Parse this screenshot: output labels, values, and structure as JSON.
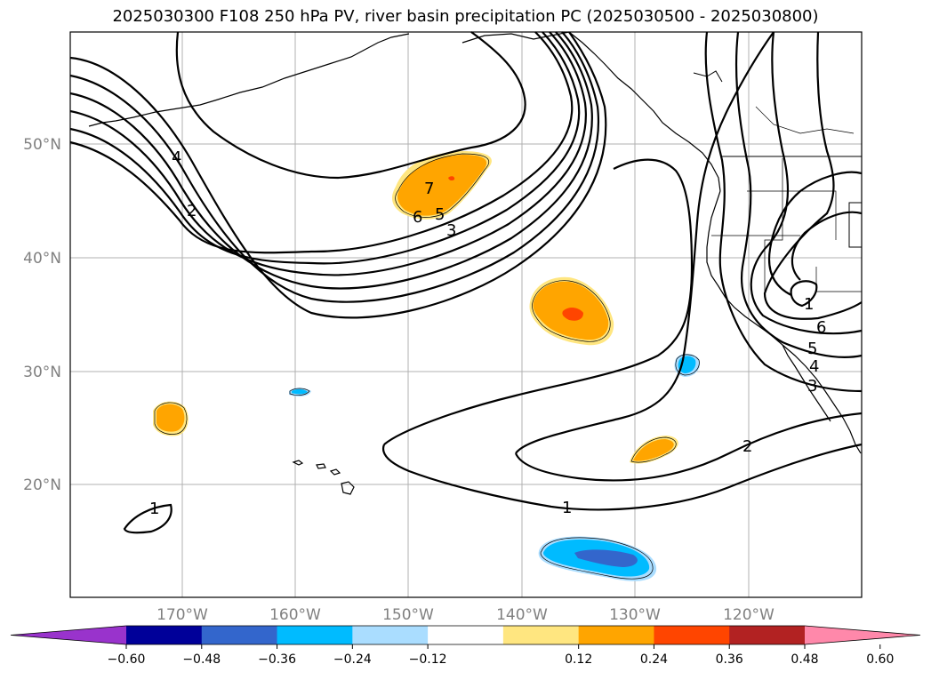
{
  "title": "2025030300 F108 250 hPa PV, river basin precipitation PC (2025030500 - 2025030800)",
  "map": {
    "lat_labels": [
      "50°N",
      "40°N",
      "30°N",
      "20°N"
    ],
    "lon_labels": [
      "170°W",
      "160°W",
      "150°W",
      "140°W",
      "130°W",
      "120°W"
    ],
    "pv_contour_labels": [
      "4",
      "2",
      "7",
      "6",
      "5",
      "3",
      "1",
      "1",
      "2",
      "6",
      "5",
      "4",
      "3",
      "1"
    ]
  },
  "colorbar": {
    "tick_labels": [
      "−0.60",
      "−0.48",
      "−0.36",
      "−0.24",
      "−0.12",
      "0.12",
      "0.24",
      "0.36",
      "0.48",
      "0.60"
    ],
    "colors": [
      "#9933cc",
      "#000099",
      "#3366cc",
      "#00bbff",
      "#aaddff",
      "#ffffff",
      "#ffe680",
      "#ffa500",
      "#ff4500",
      "#b22222",
      "#ff88aa"
    ]
  }
}
